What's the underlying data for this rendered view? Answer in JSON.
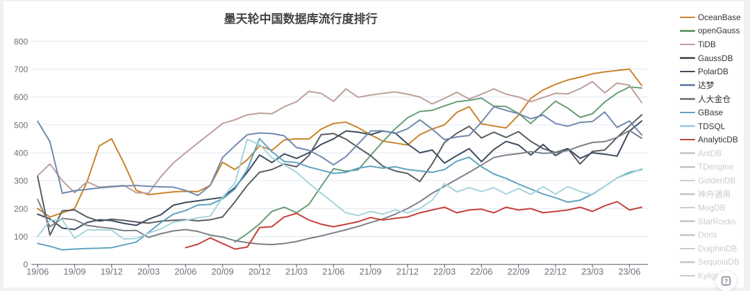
{
  "page": {
    "background_color": "#f0f1f2",
    "panel_color": "#ffffff"
  },
  "title": "墨天轮中国数据库流行度排行",
  "help_button": {
    "icon": "help-icon"
  },
  "chart_data": {
    "type": "line",
    "title": "墨天轮中国数据库流行度排行",
    "xlabel": "",
    "ylabel": "",
    "ylim": [
      0,
      800
    ],
    "y_ticks": [
      0,
      100,
      200,
      300,
      400,
      500,
      600,
      700,
      800
    ],
    "x_label_interval": 3,
    "grid_color": "#e0e6f1",
    "axis_color": "#6e7079",
    "label_color": "#6e7079",
    "legend_position": "right",
    "x": [
      "19/06",
      "19/07",
      "19/08",
      "19/09",
      "19/10",
      "19/11",
      "19/12",
      "20/01",
      "20/02",
      "20/03",
      "20/04",
      "20/05",
      "20/06",
      "20/07",
      "20/08",
      "20/09",
      "20/10",
      "20/11",
      "20/12",
      "21/01",
      "21/02",
      "21/03",
      "21/04",
      "21/05",
      "21/06",
      "21/07",
      "21/08",
      "21/09",
      "21/10",
      "21/11",
      "21/12",
      "22/01",
      "22/02",
      "22/03",
      "22/04",
      "22/05",
      "22/06",
      "22/07",
      "22/08",
      "22/09",
      "22/10",
      "22/11",
      "22/12",
      "23/01",
      "23/02",
      "23/03",
      "23/04",
      "23/05",
      "23/06",
      "23/07"
    ],
    "series": [
      {
        "name": "OceanBase",
        "color": "#c8842b",
        "values": [
          200,
          170,
          185,
          200,
          295,
          425,
          450,
          363,
          265,
          250,
          255,
          260,
          262,
          261,
          283,
          366,
          340,
          375,
          425,
          409,
          446,
          450,
          449,
          485,
          505,
          510,
          490,
          465,
          442,
          435,
          428,
          465,
          485,
          500,
          545,
          565,
          504,
          496,
          489,
          535,
          595,
          625,
          645,
          661,
          671,
          683,
          690,
          695,
          700,
          641
        ]
      },
      {
        "name": "openGauss",
        "color": "#679d74",
        "values": [
          null,
          null,
          null,
          null,
          null,
          null,
          null,
          null,
          null,
          null,
          null,
          null,
          null,
          null,
          null,
          null,
          80,
          110,
          145,
          190,
          205,
          185,
          215,
          280,
          343,
          334,
          339,
          390,
          440,
          486,
          525,
          548,
          552,
          568,
          583,
          588,
          596,
          567,
          566,
          541,
          505,
          545,
          585,
          560,
          527,
          540,
          582,
          614,
          636,
          632
        ]
      },
      {
        "name": "TiDB",
        "color": "#bd9f9b",
        "values": [
          318,
          360,
          300,
          257,
          296,
          277,
          280,
          283,
          257,
          255,
          315,
          363,
          400,
          435,
          470,
          505,
          518,
          536,
          542,
          540,
          565,
          583,
          620,
          613,
          584,
          629,
          599,
          607,
          613,
          618,
          610,
          600,
          575,
          595,
          617,
          593,
          610,
          629,
          610,
          600,
          583,
          598,
          613,
          611,
          630,
          655,
          615,
          650,
          642,
          580
        ]
      },
      {
        "name": "GaussDB",
        "color": "#595c62",
        "values": [
          315,
          105,
          192,
          195,
          170,
          155,
          162,
          158,
          152,
          148,
          155,
          158,
          160,
          156,
          160,
          170,
          224,
          283,
          330,
          340,
          360,
          350,
          390,
          465,
          469,
          449,
          419,
          390,
          352,
          335,
          326,
          297,
          360,
          437,
          470,
          495,
          453,
          474,
          455,
          476,
          441,
          415,
          401,
          415,
          360,
          405,
          410,
          455,
          496,
          536
        ]
      },
      {
        "name": "PolarDB",
        "color": "#3d4c5e",
        "values": [
          180,
          163,
          130,
          125,
          150,
          160,
          157,
          147,
          140,
          162,
          178,
          212,
          222,
          228,
          234,
          240,
          275,
          330,
          392,
          365,
          396,
          380,
          400,
          430,
          450,
          478,
          474,
          465,
          478,
          471,
          432,
          400,
          410,
          363,
          390,
          415,
          368,
          412,
          441,
          428,
          392,
          430,
          390,
          415,
          380,
          400,
          395,
          388,
          478,
          514
        ]
      },
      {
        "name": "达梦",
        "color": "#7089ae",
        "values": [
          513,
          440,
          255,
          264,
          269,
          274,
          278,
          281,
          283,
          280,
          278,
          277,
          265,
          247,
          283,
          383,
          425,
          465,
          471,
          469,
          461,
          419,
          409,
          386,
          357,
          386,
          432,
          478,
          479,
          469,
          486,
          518,
          485,
          447,
          457,
          462,
          510,
          565,
          552,
          540,
          522,
          535,
          505,
          495,
          509,
          512,
          546,
          491,
          514,
          464
        ]
      },
      {
        "name": "人大金仓",
        "color": "#7c8086",
        "values": [
          233,
          135,
          165,
          160,
          140,
          134,
          129,
          121,
          122,
          97,
          110,
          120,
          125,
          118,
          105,
          98,
          85,
          78,
          73,
          71,
          75,
          82,
          93,
          102,
          113,
          124,
          136,
          150,
          163,
          180,
          200,
          225,
          255,
          280,
          305,
          330,
          356,
          383,
          392,
          397,
          404,
          398,
          400,
          408,
          424,
          437,
          440,
          455,
          480,
          452
        ]
      },
      {
        "name": "GBase",
        "color": "#5fa3c1",
        "values": [
          75,
          65,
          52,
          55,
          57,
          58,
          60,
          70,
          80,
          115,
          150,
          180,
          193,
          213,
          215,
          235,
          270,
          340,
          451,
          404,
          369,
          365,
          349,
          338,
          326,
          330,
          345,
          352,
          345,
          350,
          340,
          335,
          330,
          340,
          370,
          384,
          350,
          324,
          308,
          288,
          270,
          252,
          239,
          223,
          230,
          252,
          280,
          310,
          330,
          340
        ]
      },
      {
        "name": "TDSQL",
        "color": "#a6d4dc",
        "values": [
          100,
          158,
          160,
          94,
          123,
          124,
          123,
          91,
          93,
          112,
          127,
          151,
          158,
          167,
          173,
          240,
          291,
          448,
          430,
          382,
          357,
          330,
          291,
          255,
          220,
          185,
          175,
          190,
          180,
          195,
          185,
          200,
          230,
          290,
          260,
          275,
          261,
          275,
          252,
          272,
          251,
          279,
          252,
          279,
          261,
          250,
          280,
          310,
          325,
          343
        ]
      },
      {
        "name": "AnalyticDB",
        "color": "#c5403a",
        "values": [
          null,
          null,
          null,
          null,
          null,
          null,
          null,
          null,
          null,
          null,
          null,
          null,
          60,
          72,
          95,
          75,
          55,
          62,
          132,
          135,
          170,
          183,
          159,
          144,
          135,
          144,
          153,
          168,
          159,
          165,
          170,
          185,
          195,
          205,
          185,
          195,
          198,
          185,
          205,
          195,
          200,
          185,
          190,
          195,
          205,
          190,
          210,
          225,
          195,
          205
        ]
      }
    ],
    "legend": [
      {
        "label": "OceanBase",
        "active": true
      },
      {
        "label": "openGauss",
        "active": true
      },
      {
        "label": "TiDB",
        "active": true
      },
      {
        "label": "GaussDB",
        "active": true
      },
      {
        "label": "PolarDB",
        "active": true
      },
      {
        "label": "达梦",
        "active": true
      },
      {
        "label": "人大金仓",
        "active": true
      },
      {
        "label": "GBase",
        "active": true
      },
      {
        "label": "TDSQL",
        "active": true
      },
      {
        "label": "AnalyticDB",
        "active": true
      },
      {
        "label": "AntDB",
        "active": false
      },
      {
        "label": "TDengine",
        "active": false
      },
      {
        "label": "GoldenDB",
        "active": false
      },
      {
        "label": "神舟通用",
        "active": false
      },
      {
        "label": "MogDB",
        "active": false
      },
      {
        "label": "StarRocks",
        "active": false
      },
      {
        "label": "Doris",
        "active": false
      },
      {
        "label": "DolphinDB",
        "active": false
      },
      {
        "label": "SequoiaDB",
        "active": false
      },
      {
        "label": "Kyligence",
        "active": false
      }
    ]
  }
}
